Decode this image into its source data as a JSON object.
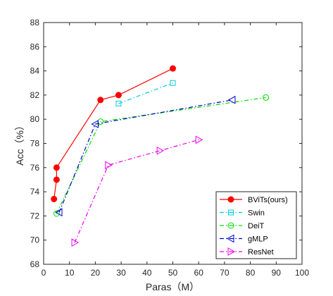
{
  "chart_data": {
    "type": "line",
    "xlabel": "Paras（M）",
    "ylabel": "Acc（%）",
    "xlim": [
      0,
      100
    ],
    "ylim": [
      68,
      88
    ],
    "xticks": [
      "0",
      "10",
      "20",
      "30",
      "40",
      "50",
      "60",
      "70",
      "80",
      "90",
      "100"
    ],
    "yticks": [
      "68",
      "70",
      "72",
      "74",
      "76",
      "78",
      "80",
      "82",
      "84",
      "86",
      "88"
    ],
    "grid": false,
    "legend_position": "bottom-right",
    "series": [
      {
        "name": "BViTs(ours)",
        "color": "#ff0000",
        "marker": "filled-circle",
        "linestyle": "solid",
        "x": [
          4,
          5,
          5,
          22,
          29,
          50
        ],
        "y": [
          73.4,
          75.0,
          76.0,
          81.6,
          82.0,
          84.2
        ]
      },
      {
        "name": "Swin",
        "color": "#00ccdd",
        "marker": "square",
        "linestyle": "dashdot",
        "x": [
          29,
          50
        ],
        "y": [
          81.3,
          83.0
        ]
      },
      {
        "name": "DeiT",
        "color": "#00dd00",
        "marker": "circle",
        "linestyle": "dashdot",
        "x": [
          5,
          22,
          86
        ],
        "y": [
          72.2,
          79.8,
          81.8
        ]
      },
      {
        "name": "gMLP",
        "color": "#0000cc",
        "marker": "left-triangle",
        "linestyle": "dashdot",
        "x": [
          6,
          20,
          73
        ],
        "y": [
          72.3,
          79.6,
          81.6
        ]
      },
      {
        "name": "ResNet",
        "color": "#ee00ee",
        "marker": "right-triangle",
        "linestyle": "dashdot",
        "x": [
          12,
          25,
          45,
          60
        ],
        "y": [
          69.8,
          76.2,
          77.4,
          78.3
        ]
      }
    ]
  }
}
